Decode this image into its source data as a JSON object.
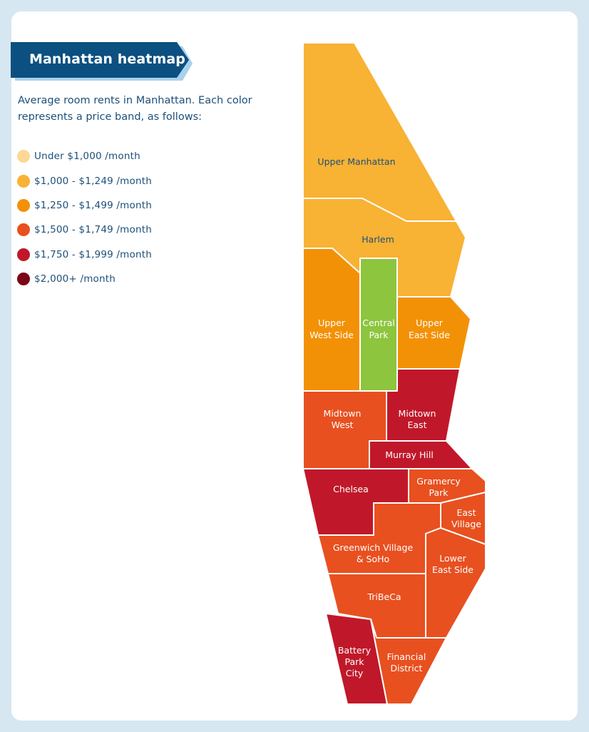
{
  "title": "Manhattan heatmap",
  "description": "Average room rents in Manhattan. Each color represents a price band, as follows:",
  "colors": {
    "band_under_1000": "#fcd894",
    "band_1000_1249": "#f8b234",
    "band_1250_1499": "#f39106",
    "band_1500_1749": "#e85020",
    "band_1750_1999": "#c0182a",
    "band_2000_plus": "#7a0618",
    "park": "#8dc53e",
    "title_bg": "#0b5081",
    "title_shadow": "#a8d1ee",
    "text": "#1d4f78"
  },
  "legend": [
    {
      "label": "Under $1,000 /month",
      "color": "#fcd894"
    },
    {
      "label": "$1,000 - $1,249 /month",
      "color": "#f8b234"
    },
    {
      "label": "$1,250 - $1,499 /month",
      "color": "#f39106"
    },
    {
      "label": "$1,500 - $1,749 /month",
      "color": "#e85020"
    },
    {
      "label": "$1,750 - $1,999 /month",
      "color": "#c0182a"
    },
    {
      "label": "$2,000+ /month",
      "color": "#7a0618"
    }
  ],
  "neighborhoods": [
    {
      "id": "upper-manhattan",
      "lines": [
        "Upper Manhattan"
      ],
      "band": "$1,000 - $1,249 /month",
      "color": "#f8b234",
      "label_color": "#1d4f78"
    },
    {
      "id": "harlem",
      "lines": [
        "Harlem"
      ],
      "band": "$1,000 - $1,249 /month",
      "color": "#f8b234",
      "label_color": "#1d4f78"
    },
    {
      "id": "upper-west-side",
      "lines": [
        "Upper",
        "West Side"
      ],
      "band": "$1,250 - $1,499 /month",
      "color": "#f39106",
      "label_color": "#ffffff"
    },
    {
      "id": "central-park",
      "lines": [
        "Central",
        "Park"
      ],
      "band": "park",
      "color": "#8dc53e",
      "label_color": "#ffffff"
    },
    {
      "id": "upper-east-side",
      "lines": [
        "Upper",
        "East Side"
      ],
      "band": "$1,250 - $1,499 /month",
      "color": "#f39106",
      "label_color": "#ffffff"
    },
    {
      "id": "midtown-west",
      "lines": [
        "Midtown",
        "West"
      ],
      "band": "$1,500 - $1,749 /month",
      "color": "#e85020",
      "label_color": "#ffffff"
    },
    {
      "id": "midtown-east",
      "lines": [
        "Midtown",
        "East"
      ],
      "band": "$1,750 - $1,999 /month",
      "color": "#c0182a",
      "label_color": "#ffffff"
    },
    {
      "id": "murray-hill",
      "lines": [
        "Murray Hill"
      ],
      "band": "$1,750 - $1,999 /month",
      "color": "#c0182a",
      "label_color": "#ffffff"
    },
    {
      "id": "chelsea",
      "lines": [
        "Chelsea"
      ],
      "band": "$1,750 - $1,999 /month",
      "color": "#c0182a",
      "label_color": "#ffffff"
    },
    {
      "id": "gramercy-park",
      "lines": [
        "Gramercy",
        "Park"
      ],
      "band": "$1,500 - $1,749 /month",
      "color": "#e85020",
      "label_color": "#ffffff"
    },
    {
      "id": "east-village",
      "lines": [
        "East",
        "Village"
      ],
      "band": "$1,500 - $1,749 /month",
      "color": "#e85020",
      "label_color": "#ffffff"
    },
    {
      "id": "greenwich-village-soho",
      "lines": [
        "Greenwich Village",
        "& SoHo"
      ],
      "band": "$1,500 - $1,749 /month",
      "color": "#e85020",
      "label_color": "#ffffff"
    },
    {
      "id": "lower-east-side",
      "lines": [
        "Lower",
        "East Side"
      ],
      "band": "$1,500 - $1,749 /month",
      "color": "#e85020",
      "label_color": "#ffffff"
    },
    {
      "id": "tribeca",
      "lines": [
        "TriBeCa"
      ],
      "band": "$1,500 - $1,749 /month",
      "color": "#e85020",
      "label_color": "#ffffff"
    },
    {
      "id": "battery-park-city",
      "lines": [
        "Battery",
        "Park",
        "City"
      ],
      "band": "$1,750 - $1,999 /month",
      "color": "#c0182a",
      "label_color": "#ffffff"
    },
    {
      "id": "financial-district",
      "lines": [
        "Financial",
        "District"
      ],
      "band": "$1,500 - $1,749 /month",
      "color": "#e85020",
      "label_color": "#ffffff"
    }
  ]
}
